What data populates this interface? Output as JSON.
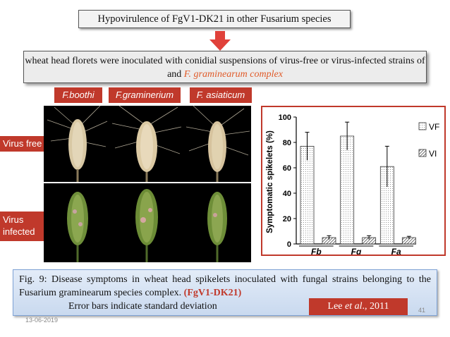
{
  "title": "Hypovirulence of FgV1-DK21 in other Fusarium species",
  "inoculation": {
    "text_before": "wheat head florets were inoculated with conidial suspensions of virus-free or virus-infected strains of  and ",
    "species_italic": "F. graminearum complex"
  },
  "species_tags": [
    "F.boothi",
    "F.graminerium",
    "F. asiaticum"
  ],
  "row_labels": {
    "virus_free": "Virus free",
    "virus_infected_line1": "Virus",
    "virus_infected_line2": "infected"
  },
  "chart_data": {
    "type": "bar",
    "categories": [
      "Fb",
      "Fg",
      "Fa"
    ],
    "series": [
      {
        "name": "VF",
        "values": [
          77,
          85,
          61
        ],
        "errors": [
          11,
          11,
          16
        ]
      },
      {
        "name": "VI",
        "values": [
          5,
          5,
          5
        ],
        "errors": [
          1.5,
          1.5,
          1
        ]
      }
    ],
    "ylabel": "Symptomatic spikelets (%)",
    "xlabel": "",
    "ylim": [
      0,
      100
    ],
    "yticks": [
      0,
      20,
      40,
      60,
      80,
      100
    ],
    "legend_position": "right",
    "grid": false
  },
  "caption": {
    "line1": "Fig. 9: Disease symptoms in wheat head spikelets inoculated with fungal strains belonging to the Fusarium graminearum species complex. ",
    "highlight": "(FgV1-DK21)",
    "line2": "Error bars indicate standard deviation"
  },
  "footer": {
    "date": "13-06-2019",
    "reference_before": "Lee ",
    "reference_italic": "et al",
    "reference_after": "., 2011",
    "page_number": "41"
  },
  "colors": {
    "accent_red": "#c0392b",
    "species_orange": "#e05a28",
    "caption_blue": "#c9d9ef"
  }
}
